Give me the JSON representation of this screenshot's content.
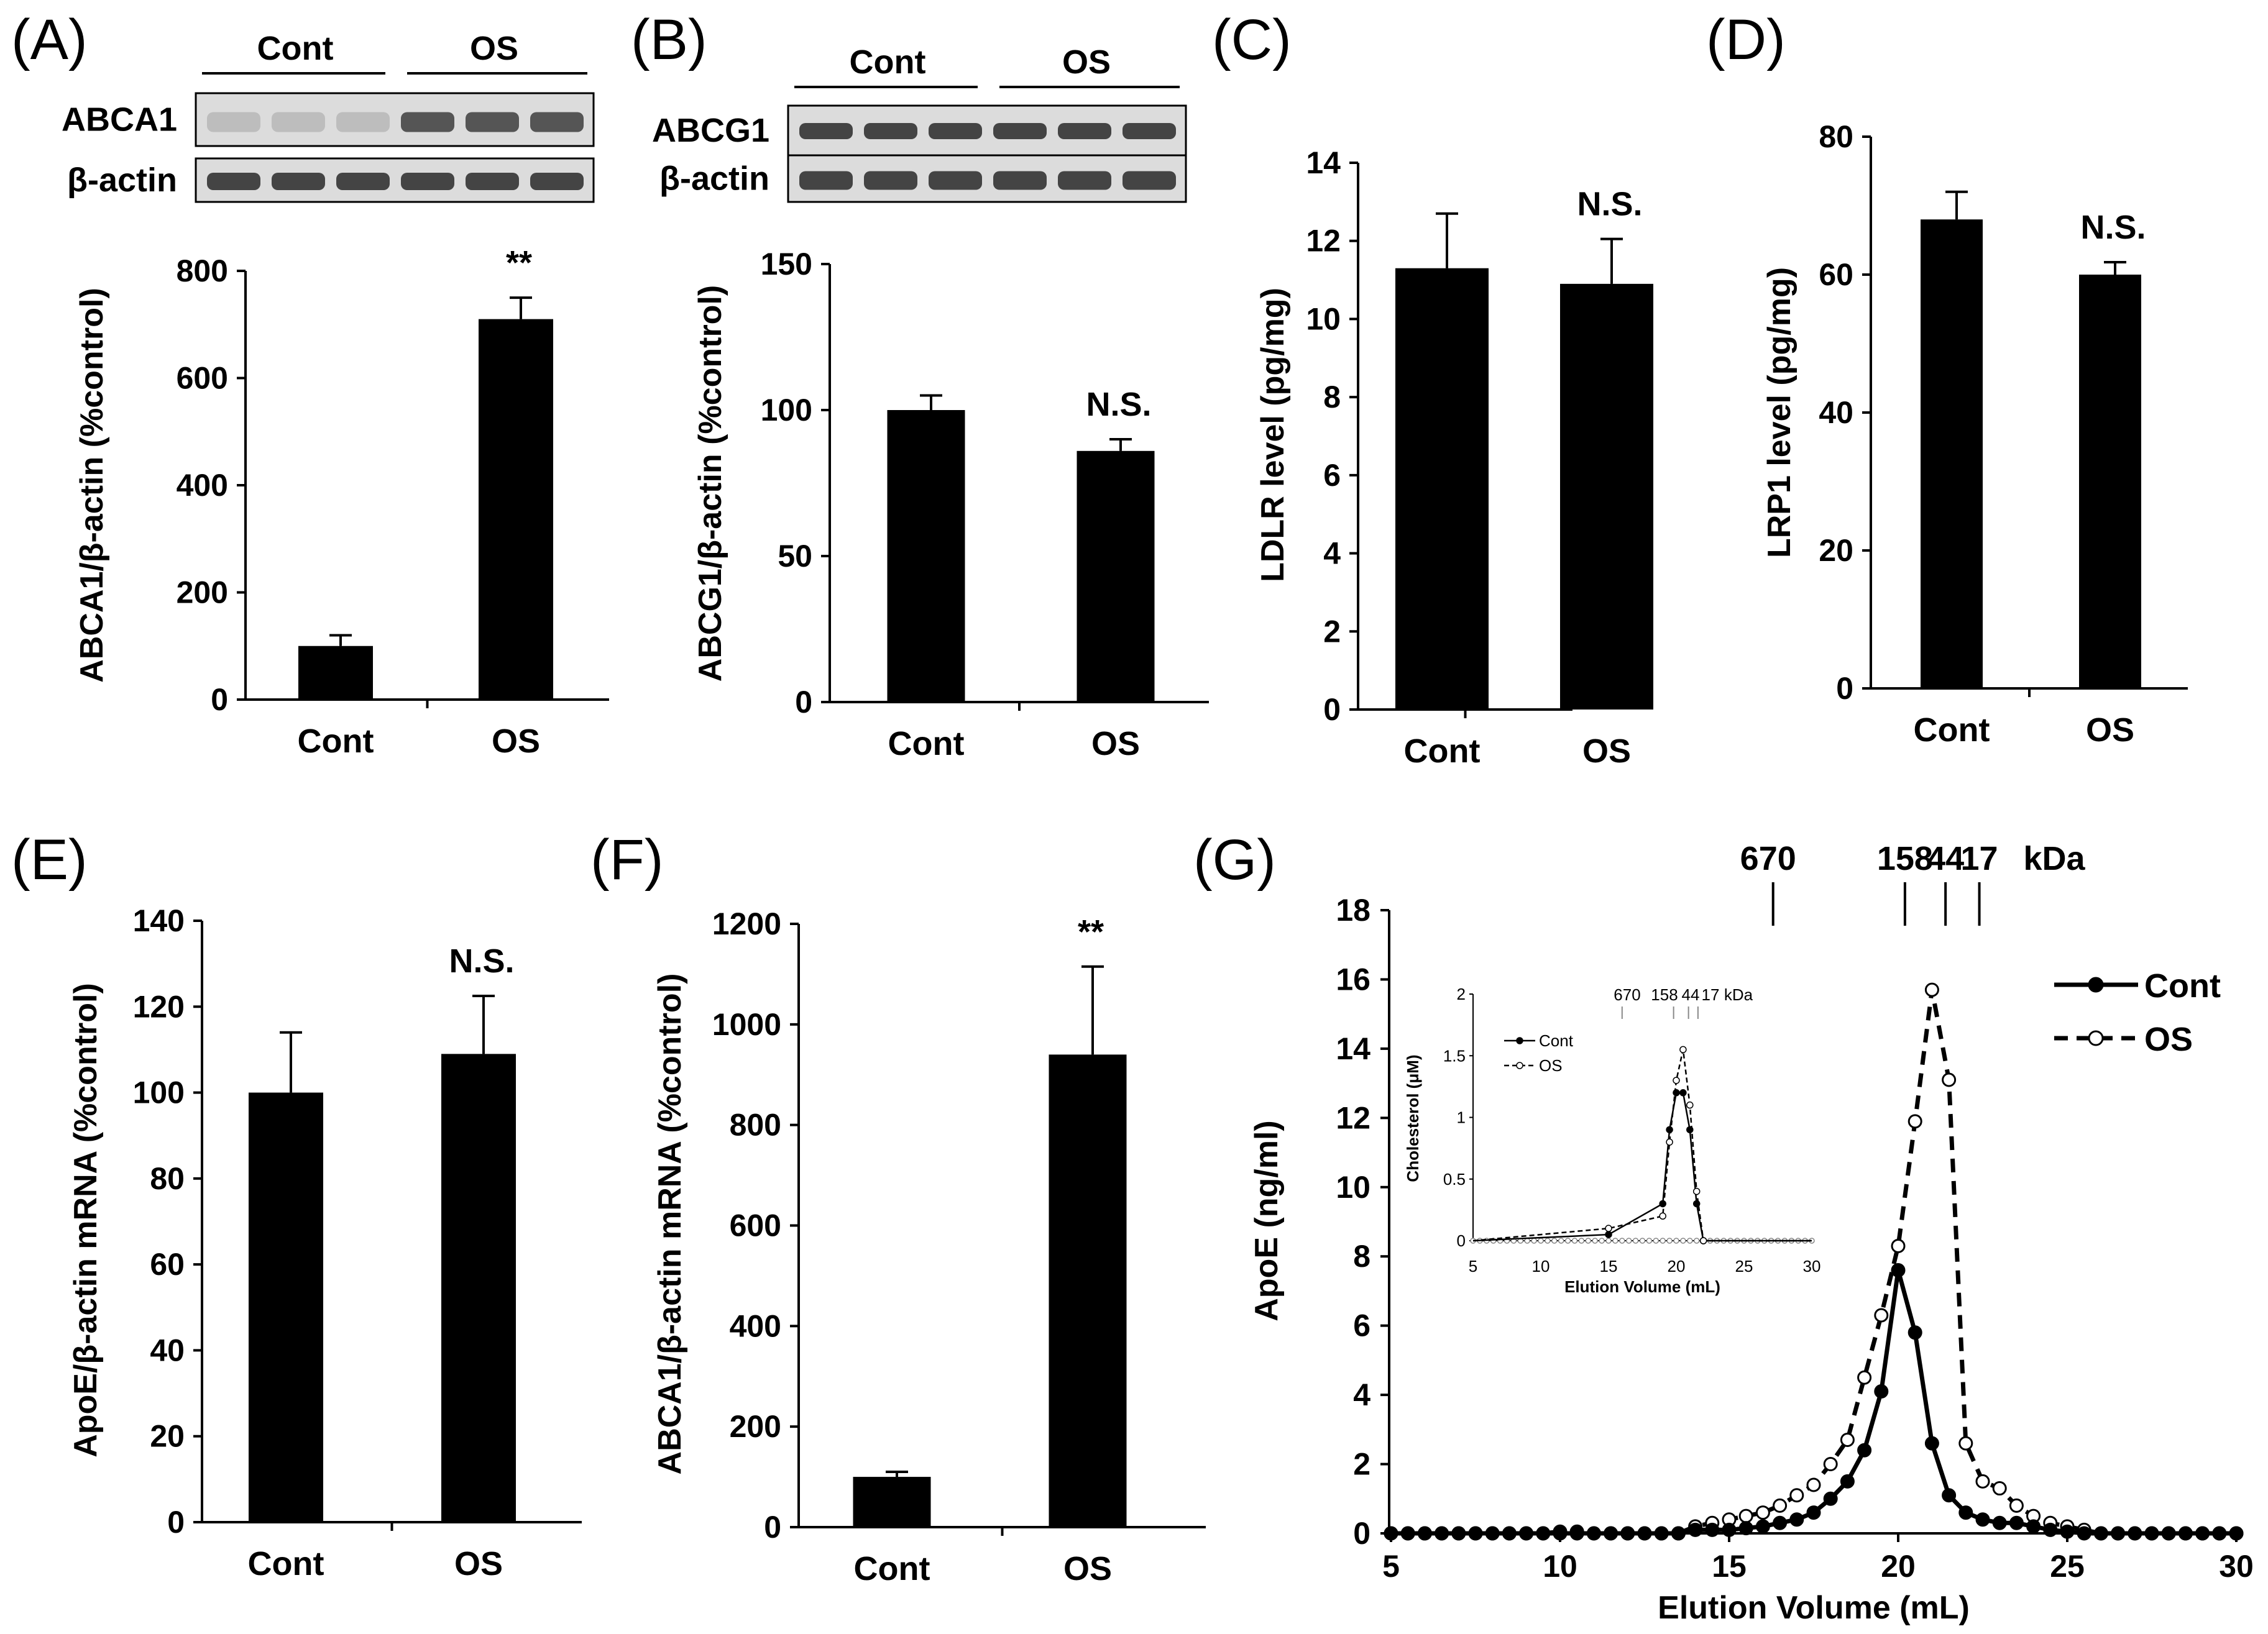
{
  "chart_data": [
    {
      "panel": "(A)",
      "type": "bar",
      "categories": [
        "Cont",
        "OS"
      ],
      "values": [
        100,
        710
      ],
      "errors": [
        20,
        40
      ],
      "significance": [
        "",
        "**"
      ],
      "ylabel": "ABCA1/β-actin (%control)",
      "ylim": [
        0,
        800
      ],
      "yticks": [
        0,
        200,
        400,
        600,
        800
      ],
      "blot": {
        "groups": [
          "Cont",
          "OS"
        ],
        "rows": [
          "ABCA1",
          "β-actin"
        ]
      }
    },
    {
      "panel": "(B)",
      "type": "bar",
      "categories": [
        "Cont",
        "OS"
      ],
      "values": [
        100,
        86
      ],
      "errors": [
        5,
        4
      ],
      "significance": [
        "",
        "N.S."
      ],
      "ylabel": "ABCG1/β-actin (%control)",
      "ylim": [
        0,
        150
      ],
      "yticks": [
        0,
        50,
        100,
        150
      ],
      "blot": {
        "groups": [
          "Cont",
          "OS"
        ],
        "rows": [
          "ABCG1",
          "β-actin"
        ]
      }
    },
    {
      "panel": "(C)",
      "type": "bar",
      "categories": [
        "Cont",
        "OS"
      ],
      "values": [
        11.3,
        10.9
      ],
      "errors": [
        1.4,
        1.15
      ],
      "significance": [
        "",
        "N.S."
      ],
      "ylabel": "LDLR level (pg/mg)",
      "ylim": [
        0,
        14
      ],
      "yticks": [
        0,
        2,
        4,
        6,
        8,
        10,
        12,
        14
      ]
    },
    {
      "panel": "(D)",
      "type": "bar",
      "categories": [
        "Cont",
        "OS"
      ],
      "values": [
        68,
        60
      ],
      "errors": [
        4,
        1.8
      ],
      "significance": [
        "",
        "N.S."
      ],
      "ylabel": "LRP1 level (pg/mg)",
      "ylim": [
        0,
        80
      ],
      "yticks": [
        0,
        20,
        40,
        60,
        80
      ]
    },
    {
      "panel": "(E)",
      "type": "bar",
      "categories": [
        "Cont",
        "OS"
      ],
      "values": [
        100,
        109
      ],
      "errors": [
        14,
        13.5
      ],
      "significance": [
        "",
        "N.S."
      ],
      "ylabel": "ApoE/β-actin mRNA (%control)",
      "ylim": [
        0,
        140
      ],
      "yticks": [
        0,
        20,
        40,
        60,
        80,
        100,
        120,
        140
      ]
    },
    {
      "panel": "(F)",
      "type": "bar",
      "categories": [
        "Cont",
        "OS"
      ],
      "values": [
        100,
        940
      ],
      "errors": [
        10,
        175
      ],
      "significance": [
        "",
        "**"
      ],
      "ylabel": "ABCA1/β-actin mRNA (%control)",
      "ylim": [
        0,
        1200
      ],
      "yticks": [
        0,
        200,
        400,
        600,
        800,
        1000,
        1200
      ]
    },
    {
      "panel": "(G)",
      "type": "line",
      "xlabel": "Elution Volume (mL)",
      "ylabel": "ApoE (ng/ml)",
      "xlim": [
        5,
        30
      ],
      "ylim": [
        0,
        18
      ],
      "xticks": [
        5,
        10,
        15,
        20,
        25,
        30
      ],
      "yticks": [
        0,
        2,
        4,
        6,
        8,
        10,
        12,
        14,
        16,
        18
      ],
      "x": [
        5,
        5.5,
        6,
        6.5,
        7,
        7.5,
        8,
        8.5,
        9,
        9.5,
        10,
        10.5,
        11,
        11.5,
        12,
        12.5,
        13,
        13.5,
        14,
        14.5,
        15,
        15.5,
        16,
        16.5,
        17,
        17.5,
        18,
        18.5,
        19,
        19.5,
        20,
        20.5,
        21,
        21.5,
        22,
        22.5,
        23,
        23.5,
        24,
        24.5,
        25,
        25.5,
        26,
        26.5,
        27,
        27.5,
        28,
        28.5,
        29,
        29.5,
        30
      ],
      "series": [
        {
          "name": "Cont",
          "marker": "filled",
          "values": [
            0,
            0,
            0,
            0,
            0,
            0,
            0,
            0,
            0,
            0,
            0,
            0,
            0,
            0,
            0,
            0,
            0,
            0,
            0.1,
            0.1,
            0.1,
            0.15,
            0.2,
            0.3,
            0.4,
            0.6,
            1.0,
            1.5,
            2.4,
            4.1,
            7.6,
            5.8,
            2.6,
            1.1,
            0.6,
            0.4,
            0.3,
            0.3,
            0.2,
            0.1,
            0.05,
            0,
            0,
            0,
            0,
            0,
            0,
            0,
            0,
            0,
            0
          ]
        },
        {
          "name": "OS",
          "marker": "open",
          "values": [
            0,
            0,
            0,
            0,
            0,
            0,
            0,
            0,
            0,
            0,
            0.05,
            0.05,
            0,
            0,
            0,
            0,
            0,
            0,
            0.2,
            0.3,
            0.4,
            0.5,
            0.6,
            0.8,
            1.1,
            1.4,
            2.0,
            2.7,
            4.5,
            6.3,
            8.3,
            11.9,
            15.7,
            13.1,
            2.6,
            1.5,
            1.3,
            0.8,
            0.5,
            0.3,
            0.2,
            0.1,
            0,
            0,
            0,
            0,
            0,
            0,
            0,
            0,
            0
          ]
        }
      ],
      "markers_kda": {
        "labels": [
          "670",
          "158",
          "44",
          "17"
        ],
        "positions_ml": [
          16.3,
          20.2,
          21.4,
          22.4
        ],
        "unit": "kDa"
      },
      "inset": {
        "xlabel": "Elution Volume (mL)",
        "ylabel": "Cholesterol (μM)",
        "xlim": [
          5,
          30
        ],
        "ylim": [
          0,
          2
        ],
        "xticks": [
          5,
          10,
          15,
          20,
          25,
          30
        ],
        "yticks": [
          0,
          0.5,
          1,
          1.5,
          2
        ],
        "x": [
          15,
          19,
          19.5,
          20,
          20.5,
          21,
          21.5,
          22
        ],
        "series": [
          {
            "name": "Cont",
            "values": [
              0.05,
              0.3,
              0.9,
              1.2,
              1.2,
              0.9,
              0.3,
              0
            ]
          },
          {
            "name": "OS",
            "values": [
              0.1,
              0.2,
              0.8,
              1.3,
              1.55,
              1.1,
              0.4,
              0
            ]
          }
        ],
        "markers_kda": {
          "labels": [
            "670",
            "158",
            "44",
            "17"
          ],
          "unit": "kDa"
        }
      }
    }
  ],
  "labels": {
    "cont": "Cont",
    "os": "OS",
    "abca1": "ABCA1",
    "abcg1": "ABCG1",
    "beta_actin": "β-actin",
    "kda": "kDa"
  }
}
